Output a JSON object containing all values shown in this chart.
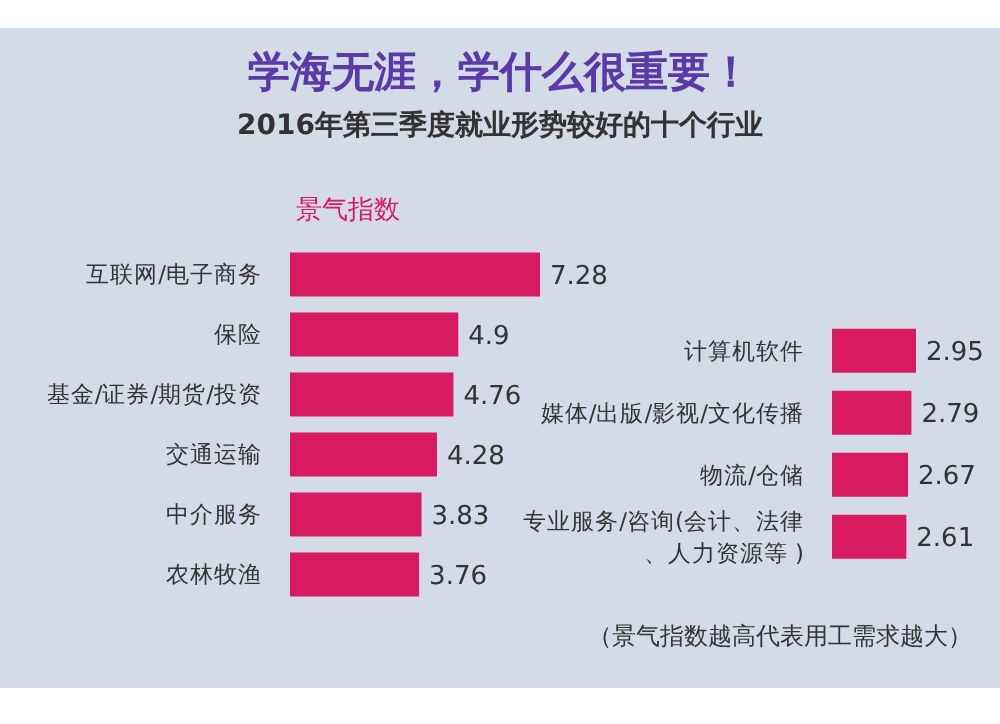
{
  "chart_data": [
    {
      "type": "bar",
      "orientation": "horizontal",
      "title": "学海无涯，学什么很重要！",
      "subtitle": "2016年第三季度就业形势较好的十个行业",
      "legend": "top left",
      "data_labels": true,
      "categories": [
        "互联网/电子商务",
        "保险",
        "基金/证券/期货/投资",
        "交通运输",
        "中介服务",
        "农林牧渔"
      ],
      "series": [
        {
          "name": "景气指数",
          "color": "#d81b60",
          "values": [
            7.28,
            4.9,
            4.76,
            4.28,
            3.83,
            3.76
          ]
        }
      ]
    },
    {
      "type": "bar",
      "orientation": "horizontal",
      "data_labels": true,
      "categories": [
        "计算机软件",
        "媒体/出版/影视/文化传播",
        "物流/仓储",
        "专业服务/咨询(会计、法律、人力资源等 )"
      ],
      "series": [
        {
          "color": "#d81b60",
          "values": [
            2.95,
            2.79,
            2.67,
            2.61
          ]
        }
      ],
      "annotations": [
        "（景气指数越高代表用工需求越大）"
      ]
    }
  ]
}
